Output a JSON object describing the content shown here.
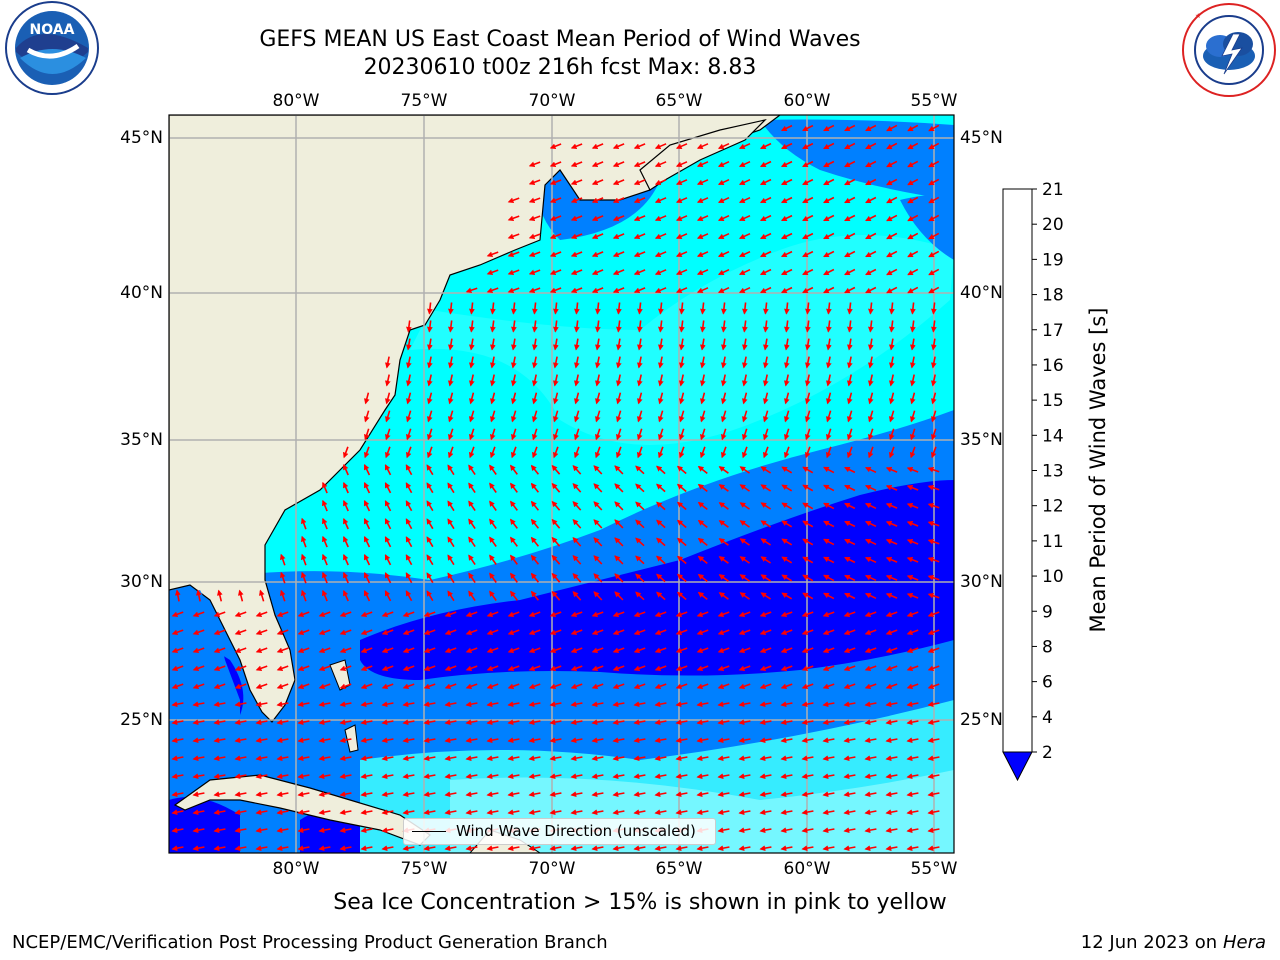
{
  "header": {
    "title_line1": "GEFS MEAN US East Coast Mean Period of Wind Waves",
    "title_line2": "20230610 t00z 216h fcst   Max: 8.83"
  },
  "logos": {
    "left": {
      "text": "NOAA",
      "ring_text": "NATIONAL OCEANIC AND ATMOSPHERIC ADMINISTRATION · U.S. DEPARTMENT OF COMMERCE"
    },
    "right": {
      "ring_text": "NATIONAL WEATHER SERVICE"
    }
  },
  "map": {
    "lon_labels": [
      "80°W",
      "75°W",
      "70°W",
      "65°W",
      "60°W",
      "55°W"
    ],
    "lat_labels": [
      "45°N",
      "40°N",
      "35°N",
      "30°N",
      "25°N"
    ],
    "legend_label": "Wind Wave Direction (unscaled)",
    "land_color": "#efeedc",
    "arrow_color": "#ff0000",
    "grid_color": "#b0b0b0"
  },
  "colorbar": {
    "label": "Mean Period of Wind Waves [s]",
    "ticks": [
      "2",
      "4",
      "6",
      "8",
      "9",
      "10",
      "11",
      "12",
      "13",
      "14",
      "15",
      "16",
      "17",
      "18",
      "19",
      "20",
      "21"
    ],
    "colors": [
      "#0000ff",
      "#0080ff",
      "#00ffff",
      "#40ffff",
      "#a0ffff",
      "#50f080",
      "#00e000",
      "#60e000",
      "#c0f000",
      "#e8f000",
      "#ffff00",
      "#ffe000",
      "#ffb000",
      "#ff8000",
      "#ff5000",
      "#ff2000",
      "#ff0000"
    ]
  },
  "chart_data": {
    "type": "heatmap",
    "title": "GEFS MEAN US East Coast Mean Period of Wind Waves",
    "subtitle": "20230610 t00z 216h fcst   Max: 8.83",
    "xlim": [
      "85°W",
      "54.5°W"
    ],
    "ylim": [
      "20.5°N",
      "45.8°N"
    ],
    "colorbar_label": "Mean Period of Wind Waves [s]",
    "colorbar_ticks": [
      2,
      4,
      6,
      8,
      9,
      10,
      11,
      12,
      13,
      14,
      15,
      16,
      17,
      18,
      19,
      20,
      21
    ],
    "max_value": 8.83,
    "vector_label": "Wind Wave Direction (unscaled)",
    "grid": true
  },
  "notes": {
    "ice": "Sea Ice Concentration > 15% is shown in pink to yellow"
  },
  "footer": {
    "left": "NCEP/EMC/Verification Post Processing Product Generation Branch",
    "date": "12 Jun 2023 on",
    "host": "Hera"
  }
}
